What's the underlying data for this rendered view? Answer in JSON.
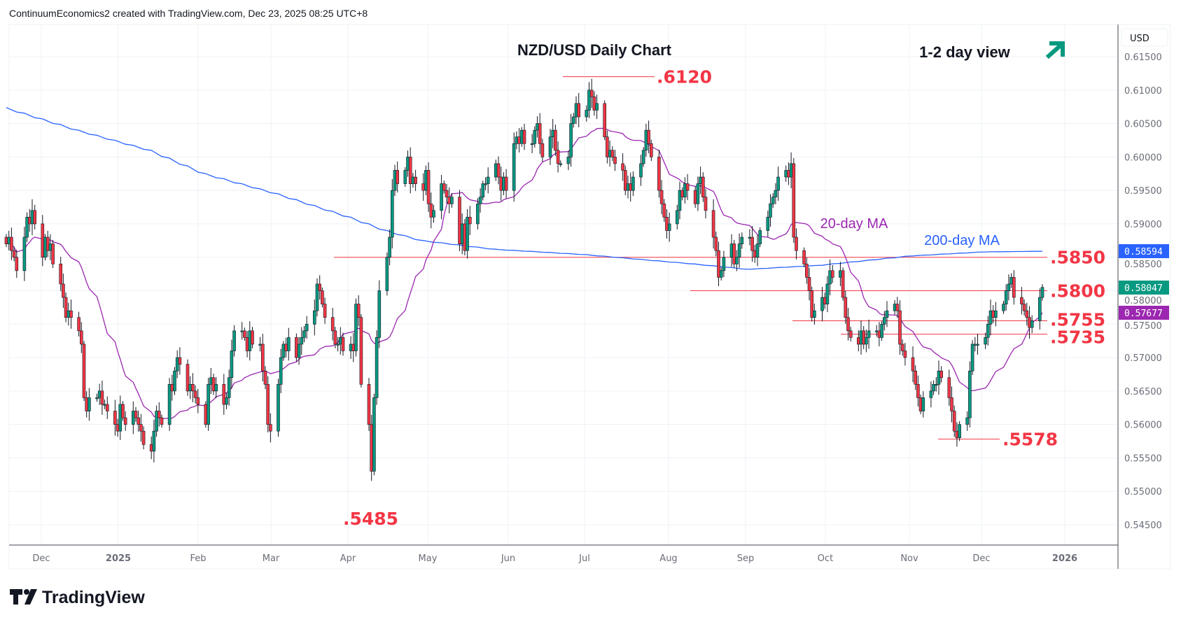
{
  "header": {
    "attribution": "ContinuumEconomics2 created with TradingView.com, Dec 23, 2025 08:25 UTC+8"
  },
  "brand": {
    "logo_text": "TradingView"
  },
  "colors": {
    "up": "#089981",
    "down": "#f23645",
    "ma20": "#9c27b0",
    "ma200": "#2962ff",
    "level": "#f23645"
  },
  "chart_data": {
    "type": "candlestick",
    "title": "NZD/USD Daily Chart",
    "subtitle": "1-2 day view",
    "view_icon": "arrow-up-right-icon",
    "currency": "USD",
    "ylim": [
      0.5425,
      0.6175
    ],
    "y_ticks": [
      "0.61500",
      "0.61000",
      "0.60500",
      "0.60000",
      "0.59500",
      "0.59000",
      "0.58500",
      "0.58000",
      "0.57500",
      "0.57000",
      "0.56500",
      "0.56000",
      "0.55500",
      "0.55000",
      "0.54500"
    ],
    "y_tick_values": [
      0.615,
      0.61,
      0.605,
      0.6,
      0.595,
      0.59,
      0.585,
      0.58,
      0.575,
      0.57,
      0.565,
      0.56,
      0.555,
      0.55,
      0.545
    ],
    "x_ticks": [
      "Dec",
      "2025",
      "Feb",
      "Mar",
      "Apr",
      "May",
      "Jun",
      "Jul",
      "Aug",
      "Sep",
      "Oct",
      "Nov",
      "Dec",
      "2026"
    ],
    "start_date": "2024-11-18",
    "closes": [
      0.587,
      0.588,
      0.586,
      0.585,
      0.583,
      0.588,
      0.591,
      0.59,
      0.592,
      0.59,
      0.585,
      0.588,
      0.586,
      0.587,
      0.584,
      0.581,
      0.579,
      0.576,
      0.577,
      0.576,
      0.574,
      0.572,
      0.564,
      0.562,
      0.564,
      0.564,
      0.565,
      0.563,
      0.563,
      0.562,
      0.56,
      0.559,
      0.563,
      0.561,
      0.56,
      0.562,
      0.561,
      0.56,
      0.559,
      0.557,
      0.556,
      0.559,
      0.562,
      0.561,
      0.56,
      0.566,
      0.565,
      0.568,
      0.57,
      0.569,
      0.565,
      0.566,
      0.565,
      0.564,
      0.563,
      0.56,
      0.566,
      0.567,
      0.565,
      0.566,
      0.563,
      0.564,
      0.567,
      0.571,
      0.574,
      0.574,
      0.573,
      0.571,
      0.574,
      0.572,
      0.572,
      0.568,
      0.566,
      0.56,
      0.559,
      0.566,
      0.57,
      0.572,
      0.571,
      0.573,
      0.57,
      0.572,
      0.573,
      0.574,
      0.575,
      0.577,
      0.581,
      0.58,
      0.578,
      0.576,
      0.574,
      0.572,
      0.572,
      0.573,
      0.571,
      0.572,
      0.571,
      0.578,
      0.576,
      0.566,
      0.56,
      0.553,
      0.564,
      0.573,
      0.58,
      0.585,
      0.588,
      0.595,
      0.598,
      0.596,
      0.598,
      0.6,
      0.596,
      0.597,
      0.596,
      0.595,
      0.598,
      0.593,
      0.591,
      0.592,
      0.596,
      0.595,
      0.594,
      0.593,
      0.594,
      0.587,
      0.59,
      0.586,
      0.591,
      0.59,
      0.593,
      0.594,
      0.596,
      0.596,
      0.597,
      0.599,
      0.597,
      0.595,
      0.597,
      0.595,
      0.602,
      0.603,
      0.602,
      0.604,
      0.602,
      0.602,
      0.604,
      0.605,
      0.602,
      0.6,
      0.603,
      0.604,
      0.601,
      0.599,
      0.599,
      0.6,
      0.605,
      0.606,
      0.608,
      0.606,
      0.607,
      0.61,
      0.609,
      0.607,
      0.608,
      0.603,
      0.6,
      0.601,
      0.6,
      0.599,
      0.598,
      0.595,
      0.596,
      0.595,
      0.597,
      0.599,
      0.601,
      0.604,
      0.602,
      0.6,
      0.595,
      0.593,
      0.591,
      0.589,
      0.59,
      0.592,
      0.595,
      0.594,
      0.596,
      0.595,
      0.593,
      0.596,
      0.597,
      0.594,
      0.592,
      0.588,
      0.586,
      0.582,
      0.583,
      0.585,
      0.587,
      0.584,
      0.585,
      0.587,
      0.588,
      0.588,
      0.586,
      0.585,
      0.587,
      0.589,
      0.591,
      0.593,
      0.594,
      0.595,
      0.597,
      0.598,
      0.597,
      0.599,
      0.588,
      0.586,
      0.584,
      0.582,
      0.58,
      0.576,
      0.577,
      0.579,
      0.578,
      0.581,
      0.583,
      0.582,
      0.583,
      0.579,
      0.576,
      0.574,
      0.573,
      0.572,
      0.574,
      0.572,
      0.573,
      0.574,
      0.574,
      0.573,
      0.575,
      0.576,
      0.577,
      0.578,
      0.577,
      0.572,
      0.571,
      0.57,
      0.568,
      0.566,
      0.564,
      0.562,
      0.564,
      0.565,
      0.566,
      0.566,
      0.568,
      0.567,
      0.564,
      0.562,
      0.559,
      0.558,
      0.56,
      0.561,
      0.568,
      0.572,
      0.572,
      0.572,
      0.573,
      0.575,
      0.577,
      0.576,
      0.577,
      0.578,
      0.58,
      0.581,
      0.582,
      0.579,
      0.578,
      0.577,
      0.576,
      0.5745,
      0.5755,
      0.579,
      0.5805
    ],
    "ma200_anchors": [
      [
        0,
        0.6074
      ],
      [
        20,
        0.604
      ],
      [
        40,
        0.601
      ],
      [
        55,
        0.5975
      ],
      [
        75,
        0.5945
      ],
      [
        95,
        0.591
      ],
      [
        105,
        0.589
      ],
      [
        115,
        0.5875
      ],
      [
        135,
        0.5862
      ],
      [
        160,
        0.5854
      ],
      [
        190,
        0.584
      ],
      [
        205,
        0.5832
      ],
      [
        225,
        0.5838
      ],
      [
        250,
        0.5852
      ],
      [
        270,
        0.5858
      ],
      [
        286,
        0.5859
      ]
    ],
    "series_labels": {
      "ma20": "20-day MA",
      "ma200": "200-day MA"
    },
    "last_values": {
      "ma200": "0.58594",
      "close": "0.58047",
      "ma20": "0.57677"
    },
    "levels": [
      {
        "label": ".6120",
        "value": 0.612
      },
      {
        "label": ".5850",
        "value": 0.585
      },
      {
        "label": ".5800",
        "value": 0.58
      },
      {
        "label": ".5755",
        "value": 0.5755
      },
      {
        "label": ".5735",
        "value": 0.5735
      },
      {
        "label": ".5578",
        "value": 0.5578
      },
      {
        "label": ".5485",
        "value": 0.5485
      }
    ]
  }
}
